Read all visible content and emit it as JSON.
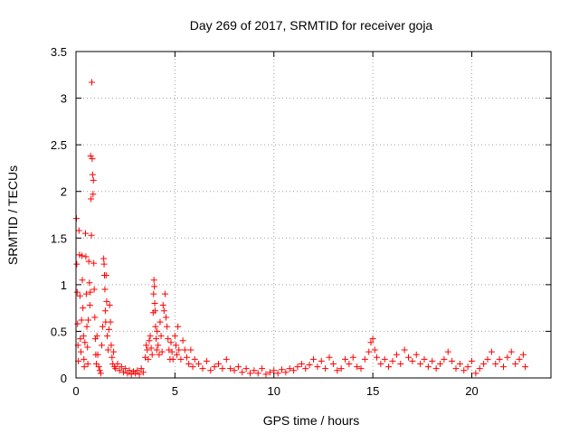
{
  "chart_data": {
    "type": "scatter",
    "title": "Day 269 of 2017, SRMTID for receiver goja",
    "xlabel": "GPS time / hours",
    "ylabel": "SRMTID / TECUs",
    "xlim": [
      0,
      24
    ],
    "ylim": [
      0,
      3.5
    ],
    "grid": true,
    "marker": "plus",
    "color": "#ff0000",
    "xticks": [
      0,
      5,
      10,
      15,
      20
    ],
    "xtick_labels": [
      "0",
      "5",
      "10",
      "15",
      "20"
    ],
    "yticks": [
      0,
      0.5,
      1,
      1.5,
      2,
      2.5,
      3,
      3.5
    ],
    "ytick_labels": [
      "0",
      "0.5",
      "1",
      "1.5",
      "2",
      "2.5",
      "3",
      "3.5"
    ],
    "series": [
      {
        "name": "SRMTID",
        "points": [
          [
            0.02,
            1.71
          ],
          [
            0.04,
            1.22
          ],
          [
            0.06,
            0.92
          ],
          [
            0.08,
            0.58
          ],
          [
            0.1,
            0.35
          ],
          [
            0.12,
            0.18
          ],
          [
            0.15,
            1.58
          ],
          [
            0.18,
            1.32
          ],
          [
            0.2,
            0.88
          ],
          [
            0.22,
            0.42
          ],
          [
            0.25,
            0.28
          ],
          [
            0.28,
            0.62
          ],
          [
            0.3,
            1.31
          ],
          [
            0.32,
            1.05
          ],
          [
            0.35,
            0.75
          ],
          [
            0.38,
            0.45
          ],
          [
            0.4,
            0.2
          ],
          [
            0.42,
            0.12
          ],
          [
            0.45,
            0.38
          ],
          [
            0.48,
            1.55
          ],
          [
            0.5,
            1.3
          ],
          [
            0.52,
            0.9
          ],
          [
            0.55,
            0.55
          ],
          [
            0.58,
            0.33
          ],
          [
            0.6,
            0.15
          ],
          [
            0.62,
            0.62
          ],
          [
            0.65,
            1.25
          ],
          [
            0.68,
            1.02
          ],
          [
            0.7,
            0.78
          ],
          [
            0.72,
            0.92
          ],
          [
            0.74,
            2.38
          ],
          [
            0.76,
            1.92
          ],
          [
            0.78,
            1.53
          ],
          [
            0.8,
            3.17
          ],
          [
            0.82,
            2.35
          ],
          [
            0.84,
            2.18
          ],
          [
            0.86,
            1.97
          ],
          [
            0.88,
            2.12
          ],
          [
            0.9,
            1.23
          ],
          [
            0.92,
            0.95
          ],
          [
            0.95,
            0.65
          ],
          [
            0.98,
            0.42
          ],
          [
            1.0,
            0.25
          ],
          [
            1.03,
            0.15
          ],
          [
            1.06,
            0.45
          ],
          [
            1.1,
            0.25
          ],
          [
            1.15,
            0.12
          ],
          [
            1.2,
            0.08
          ],
          [
            1.25,
            0.05
          ],
          [
            1.3,
            0.35
          ],
          [
            1.35,
            0.55
          ],
          [
            1.4,
            1.28
          ],
          [
            1.42,
            1.22
          ],
          [
            1.44,
            1.1
          ],
          [
            1.46,
            0.95
          ],
          [
            1.48,
            0.72
          ],
          [
            1.5,
            0.6
          ],
          [
            1.52,
            1.1
          ],
          [
            1.55,
            0.82
          ],
          [
            1.58,
            0.45
          ],
          [
            1.62,
            0.3
          ],
          [
            1.66,
            0.52
          ],
          [
            1.7,
            0.78
          ],
          [
            1.74,
            0.6
          ],
          [
            1.78,
            0.35
          ],
          [
            1.82,
            0.22
          ],
          [
            1.86,
            0.15
          ],
          [
            1.9,
            0.28
          ],
          [
            1.95,
            0.12
          ],
          [
            2.0,
            0.1
          ],
          [
            2.1,
            0.15
          ],
          [
            2.2,
            0.08
          ],
          [
            2.3,
            0.12
          ],
          [
            2.4,
            0.06
          ],
          [
            2.5,
            0.1
          ],
          [
            2.6,
            0.05
          ],
          [
            2.7,
            0.08
          ],
          [
            2.8,
            0.04
          ],
          [
            2.9,
            0.07
          ],
          [
            3.0,
            0.05
          ],
          [
            3.1,
            0.08
          ],
          [
            3.2,
            0.04
          ],
          [
            3.3,
            0.1
          ],
          [
            3.4,
            0.06
          ],
          [
            3.5,
            0.22
          ],
          [
            3.55,
            0.35
          ],
          [
            3.6,
            0.3
          ],
          [
            3.65,
            0.2
          ],
          [
            3.7,
            0.4
          ],
          [
            3.75,
            0.45
          ],
          [
            3.8,
            0.32
          ],
          [
            3.85,
            0.25
          ],
          [
            3.9,
            0.7
          ],
          [
            3.92,
            0.9
          ],
          [
            3.94,
            1.05
          ],
          [
            3.96,
            0.98
          ],
          [
            3.98,
            0.8
          ],
          [
            4.0,
            0.72
          ],
          [
            4.02,
            0.55
          ],
          [
            4.05,
            0.42
          ],
          [
            4.08,
            0.3
          ],
          [
            4.1,
            0.5
          ],
          [
            4.15,
            0.35
          ],
          [
            4.2,
            0.25
          ],
          [
            4.25,
            0.6
          ],
          [
            4.3,
            0.45
          ],
          [
            4.35,
            0.28
          ],
          [
            4.4,
            0.78
          ],
          [
            4.45,
            0.72
          ],
          [
            4.5,
            0.9
          ],
          [
            4.55,
            0.65
          ],
          [
            4.6,
            0.55
          ],
          [
            4.65,
            0.42
          ],
          [
            4.7,
            0.3
          ],
          [
            4.75,
            0.2
          ],
          [
            4.8,
            0.38
          ],
          [
            4.85,
            0.28
          ],
          [
            4.9,
            0.2
          ],
          [
            5.0,
            0.45
          ],
          [
            5.05,
            0.35
          ],
          [
            5.1,
            0.25
          ],
          [
            5.15,
            0.55
          ],
          [
            5.2,
            0.3
          ],
          [
            5.3,
            0.2
          ],
          [
            5.4,
            0.4
          ],
          [
            5.5,
            0.3
          ],
          [
            5.6,
            0.22
          ],
          [
            5.7,
            0.15
          ],
          [
            5.8,
            0.3
          ],
          [
            5.9,
            0.12
          ],
          [
            6.0,
            0.2
          ],
          [
            6.2,
            0.15
          ],
          [
            6.4,
            0.1
          ],
          [
            6.6,
            0.18
          ],
          [
            6.8,
            0.08
          ],
          [
            7.0,
            0.12
          ],
          [
            7.2,
            0.15
          ],
          [
            7.4,
            0.1
          ],
          [
            7.6,
            0.2
          ],
          [
            7.8,
            0.1
          ],
          [
            8.0,
            0.08
          ],
          [
            8.2,
            0.12
          ],
          [
            8.4,
            0.06
          ],
          [
            8.6,
            0.1
          ],
          [
            8.8,
            0.05
          ],
          [
            9.0,
            0.08
          ],
          [
            9.2,
            0.05
          ],
          [
            9.4,
            0.1
          ],
          [
            9.6,
            0.04
          ],
          [
            9.8,
            0.06
          ],
          [
            10.0,
            0.08
          ],
          [
            10.2,
            0.05
          ],
          [
            10.4,
            0.09
          ],
          [
            10.6,
            0.06
          ],
          [
            10.8,
            0.1
          ],
          [
            11.0,
            0.08
          ],
          [
            11.2,
            0.12
          ],
          [
            11.4,
            0.15
          ],
          [
            11.6,
            0.1
          ],
          [
            11.8,
            0.14
          ],
          [
            12.0,
            0.2
          ],
          [
            12.2,
            0.12
          ],
          [
            12.4,
            0.18
          ],
          [
            12.6,
            0.1
          ],
          [
            12.8,
            0.22
          ],
          [
            13.0,
            0.15
          ],
          [
            13.2,
            0.08
          ],
          [
            13.4,
            0.1
          ],
          [
            13.6,
            0.2
          ],
          [
            13.8,
            0.15
          ],
          [
            14.0,
            0.22
          ],
          [
            14.2,
            0.12
          ],
          [
            14.4,
            0.1
          ],
          [
            14.6,
            0.2
          ],
          [
            14.8,
            0.28
          ],
          [
            14.9,
            0.38
          ],
          [
            15.0,
            0.42
          ],
          [
            15.1,
            0.3
          ],
          [
            15.2,
            0.22
          ],
          [
            15.4,
            0.15
          ],
          [
            15.6,
            0.2
          ],
          [
            15.8,
            0.12
          ],
          [
            16.0,
            0.18
          ],
          [
            16.2,
            0.25
          ],
          [
            16.4,
            0.15
          ],
          [
            16.6,
            0.3
          ],
          [
            16.8,
            0.22
          ],
          [
            17.0,
            0.18
          ],
          [
            17.2,
            0.25
          ],
          [
            17.4,
            0.15
          ],
          [
            17.6,
            0.2
          ],
          [
            17.8,
            0.12
          ],
          [
            18.0,
            0.18
          ],
          [
            18.2,
            0.1
          ],
          [
            18.4,
            0.15
          ],
          [
            18.6,
            0.2
          ],
          [
            18.8,
            0.28
          ],
          [
            19.0,
            0.18
          ],
          [
            19.2,
            0.1
          ],
          [
            19.4,
            0.15
          ],
          [
            19.6,
            0.08
          ],
          [
            19.8,
            0.12
          ],
          [
            20.0,
            0.18
          ],
          [
            20.2,
            0.05
          ],
          [
            20.4,
            0.1
          ],
          [
            20.6,
            0.15
          ],
          [
            20.8,
            0.2
          ],
          [
            21.0,
            0.28
          ],
          [
            21.2,
            0.15
          ],
          [
            21.4,
            0.2
          ],
          [
            21.6,
            0.12
          ],
          [
            21.8,
            0.22
          ],
          [
            22.0,
            0.28
          ],
          [
            22.2,
            0.15
          ],
          [
            22.4,
            0.2
          ],
          [
            22.6,
            0.25
          ],
          [
            22.7,
            0.12
          ]
        ]
      }
    ]
  }
}
